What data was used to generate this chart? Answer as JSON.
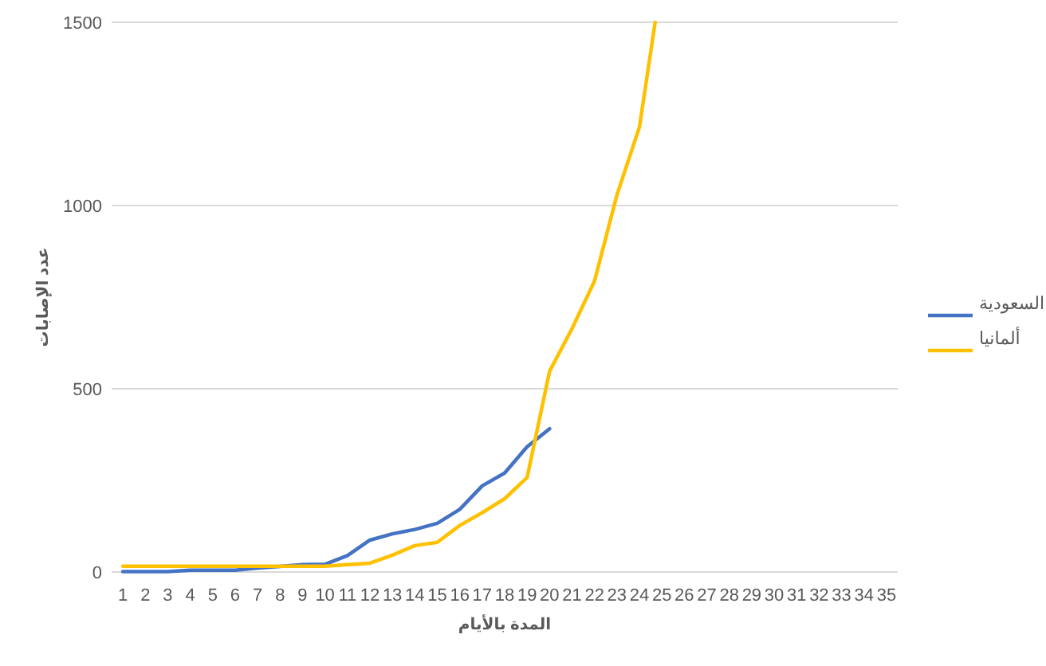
{
  "chart_data": {
    "type": "line",
    "xlabel": "المدة بالأيام",
    "ylabel": "عدد الإصابات",
    "xlim": [
      0.5,
      35.5
    ],
    "xticks": [
      1,
      2,
      3,
      4,
      5,
      6,
      7,
      8,
      9,
      10,
      11,
      12,
      13,
      14,
      15,
      16,
      17,
      18,
      19,
      20,
      21,
      22,
      23,
      24,
      25,
      26,
      27,
      28,
      29,
      30,
      31,
      32,
      33,
      34,
      35
    ],
    "ylim": [
      0,
      1500
    ],
    "yticks": [
      0,
      500,
      1000,
      1500
    ],
    "grid": "y",
    "legend": "right",
    "marker": "none",
    "series": [
      {
        "name": "السعودية",
        "color": "#4472c4",
        "x": [
          1,
          2,
          3,
          4,
          5,
          6,
          7,
          8,
          9,
          10,
          11,
          12,
          13,
          14,
          15,
          16,
          17,
          18,
          19,
          20
        ],
        "values": [
          1,
          1,
          1,
          5,
          5,
          5,
          11,
          15,
          20,
          21,
          45,
          87,
          104,
          116,
          133,
          171,
          235,
          270,
          342,
          391
        ]
      },
      {
        "name": "ألمانيا",
        "color": "#ffc000",
        "x": [
          1,
          2,
          3,
          4,
          5,
          6,
          7,
          8,
          9,
          10,
          11,
          12,
          13,
          14,
          15,
          16,
          17,
          18,
          19,
          20,
          21,
          22,
          23,
          24,
          24.7
        ],
        "values": [
          16,
          16,
          16,
          16,
          16,
          16,
          16,
          16,
          16,
          16,
          20,
          24,
          46,
          72,
          81,
          127,
          162,
          200,
          258,
          548,
          664,
          794,
          1029,
          1214,
          1500
        ]
      }
    ]
  }
}
